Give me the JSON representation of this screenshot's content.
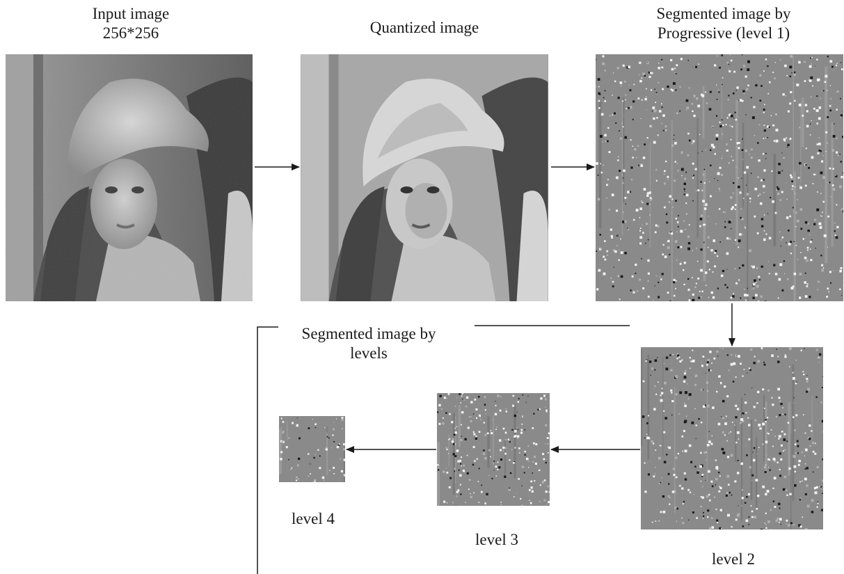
{
  "input": {
    "title_line1": "Input image",
    "title_line2": "256*256"
  },
  "quantized": {
    "title": "Quantized image"
  },
  "progressive": {
    "title_line1": "Segmented image by",
    "title_line2": "Progressive (level 1)"
  },
  "levels_group": {
    "title_line1": "Segmented image by",
    "title_line2": "levels"
  },
  "levels": {
    "level2": "level 2",
    "level3": "level 3",
    "level4": "level 4"
  },
  "colors": {
    "line": "#1a1a1a",
    "segment_gray": "#8a8a8a",
    "background": "#ffffff"
  }
}
